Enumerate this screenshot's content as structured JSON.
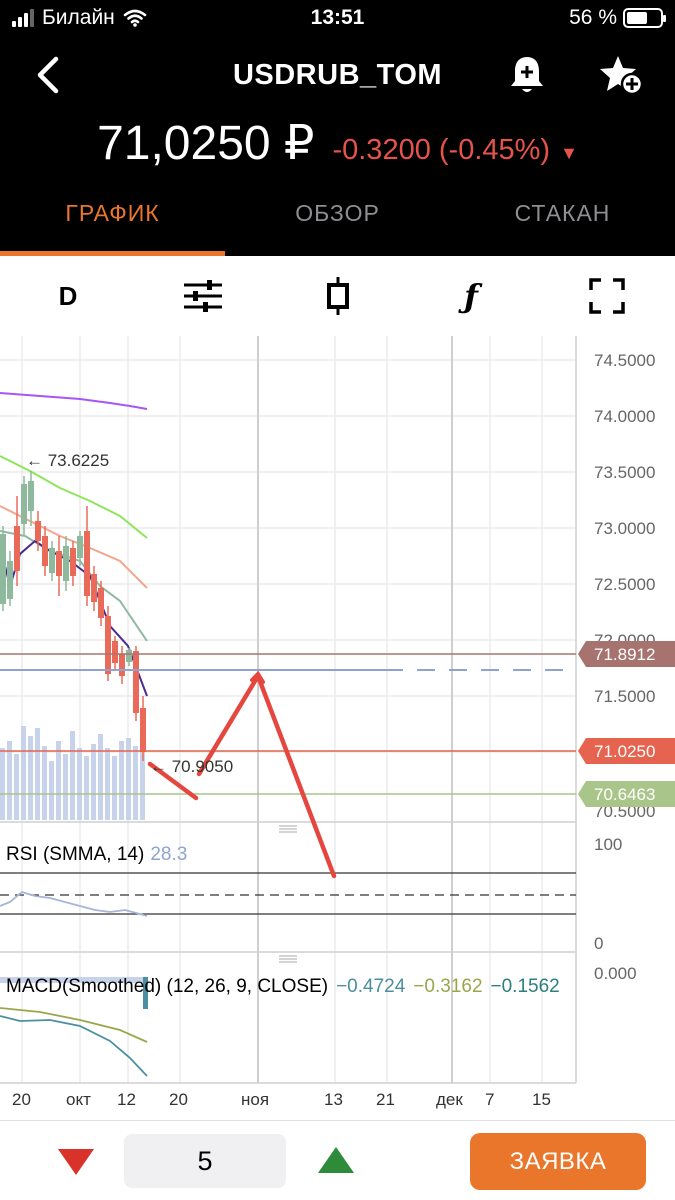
{
  "status_bar": {
    "carrier": "Билайн",
    "time": "13:51",
    "battery": "56 %"
  },
  "nav": {
    "title": "USDRUB_TOM",
    "back_icon": "chevron-left-icon",
    "bell_icon": "bell-add-icon",
    "favorite_icon": "star-add-icon"
  },
  "quote": {
    "price": "71,0250 ₽",
    "change": "-0.3200 (-0.45%)",
    "change_direction": "down",
    "color_down": "#e5534b"
  },
  "tabs": [
    {
      "label": "ГРАФИК",
      "active": true
    },
    {
      "label": "ОБЗОР",
      "active": false
    },
    {
      "label": "СТАКАН",
      "active": false
    }
  ],
  "toolbar": {
    "interval": "D",
    "settings_icon": "sliders-icon",
    "chart_type_icon": "candlestick-icon",
    "indicators_icon": "function-icon",
    "fullscreen_icon": "fullscreen-icon"
  },
  "chart": {
    "y_labels": [
      "74.5000",
      "74.0000",
      "73.5000",
      "73.0000",
      "72.5000",
      "72.0000",
      "71.5000",
      "70.5000"
    ],
    "x_labels": [
      "20",
      "окт",
      "12",
      "20",
      "ноя",
      "13",
      "21",
      "дек",
      "7",
      "15"
    ],
    "price_tags": [
      {
        "value": "71.8912",
        "color": "#a7736f"
      },
      {
        "value": "71.0250",
        "color": "#e5634f"
      },
      {
        "value": "70.6463",
        "color": "#a9c58a"
      }
    ],
    "high_annotation": "← 73.6225",
    "low_annotation": "← 70.9050",
    "rsi": {
      "label": "RSI (SMMA, 14)",
      "value": "28.3",
      "scale_top": "100",
      "scale_bottom": "0"
    },
    "macd": {
      "label": "MACD(Smoothed) (12, 26, 9, CLOSE)",
      "v1": "−0.4724",
      "v2": "−0.3162",
      "v3": "−0.1562",
      "scale_top": "0.000"
    }
  },
  "bottom": {
    "quantity": "5",
    "order_label": "ЗАЯВКА",
    "sell_icon": "triangle-down-icon",
    "buy_icon": "triangle-up-icon"
  }
}
